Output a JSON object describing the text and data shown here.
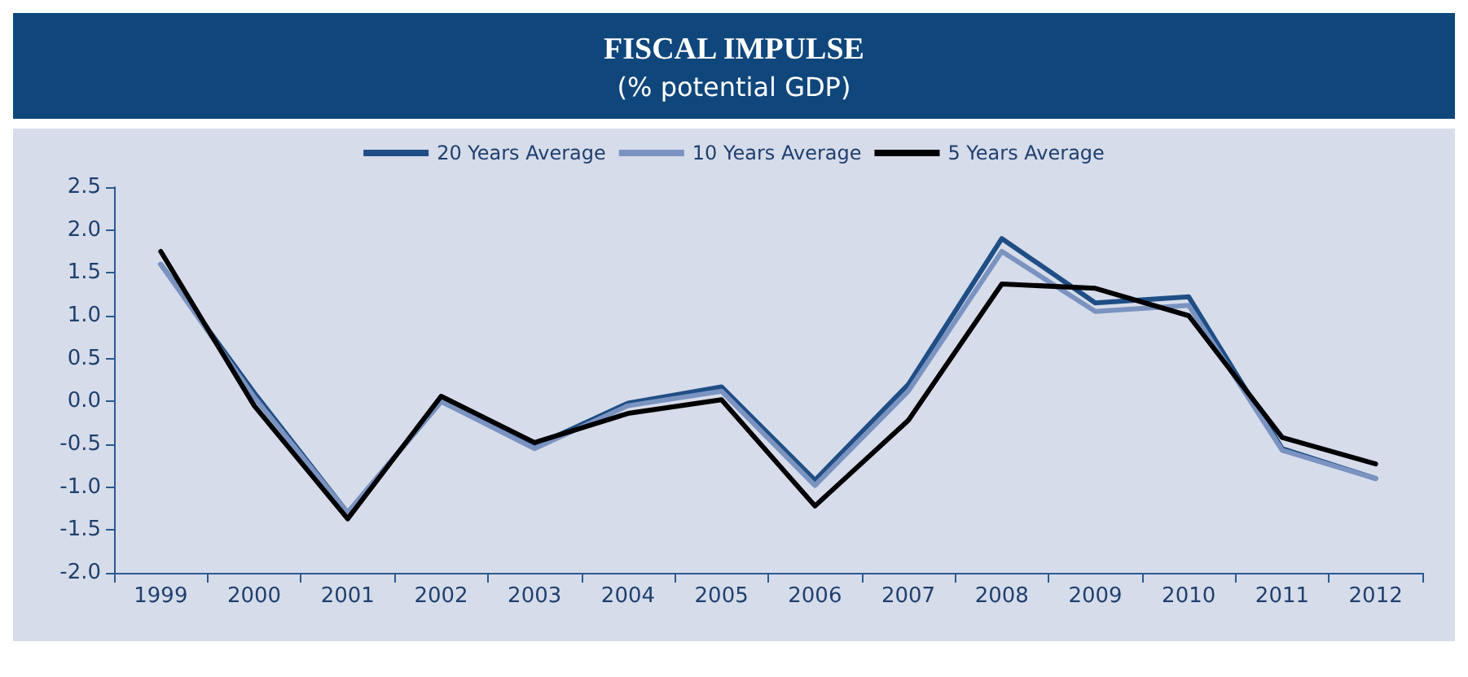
{
  "chart_data": {
    "type": "line",
    "title": "FISCAL IMPULSE",
    "subtitle": "(% potential GDP)",
    "categories": [
      "1999",
      "2000",
      "2001",
      "2002",
      "2003",
      "2004",
      "2005",
      "2006",
      "2007",
      "2008",
      "2009",
      "2010",
      "2011",
      "2012"
    ],
    "series": [
      {
        "name": "20 Years Average",
        "color": "#1f4e85",
        "values": [
          1.6,
          0.1,
          -1.3,
          0.0,
          -0.52,
          -0.02,
          0.17,
          -0.92,
          0.2,
          1.9,
          1.15,
          1.22,
          -0.55,
          -0.9
        ]
      },
      {
        "name": "10 Years Average",
        "color": "#7a93c0",
        "values": [
          1.6,
          0.05,
          -1.3,
          0.0,
          -0.55,
          -0.05,
          0.12,
          -0.98,
          0.12,
          1.75,
          1.05,
          1.12,
          -0.57,
          -0.9
        ]
      },
      {
        "name": "5 Years Average",
        "color": "#000000",
        "values": [
          1.75,
          -0.05,
          -1.37,
          0.06,
          -0.48,
          -0.14,
          0.02,
          -1.22,
          -0.22,
          1.37,
          1.32,
          1.0,
          -0.42,
          -0.73
        ]
      }
    ],
    "ylim": [
      -2.0,
      2.5
    ],
    "yticks": [
      {
        "value": -2.0,
        "label": "-2.0"
      },
      {
        "value": -1.5,
        "label": "-1.5"
      },
      {
        "value": -1.0,
        "label": "-1.0"
      },
      {
        "value": -0.5,
        "label": "-0.5"
      },
      {
        "value": 0,
        "label": "0.0"
      },
      {
        "value": 0.5,
        "label": "0.5"
      },
      {
        "value": 1.0,
        "label": "1.0"
      },
      {
        "value": 1.5,
        "label": "1.5"
      },
      {
        "value": 2.0,
        "label": "2.0"
      },
      {
        "value": 2.5,
        "label": "2.5"
      }
    ],
    "grid": false,
    "legend": "top",
    "marker": "none",
    "line_style": "solid"
  }
}
